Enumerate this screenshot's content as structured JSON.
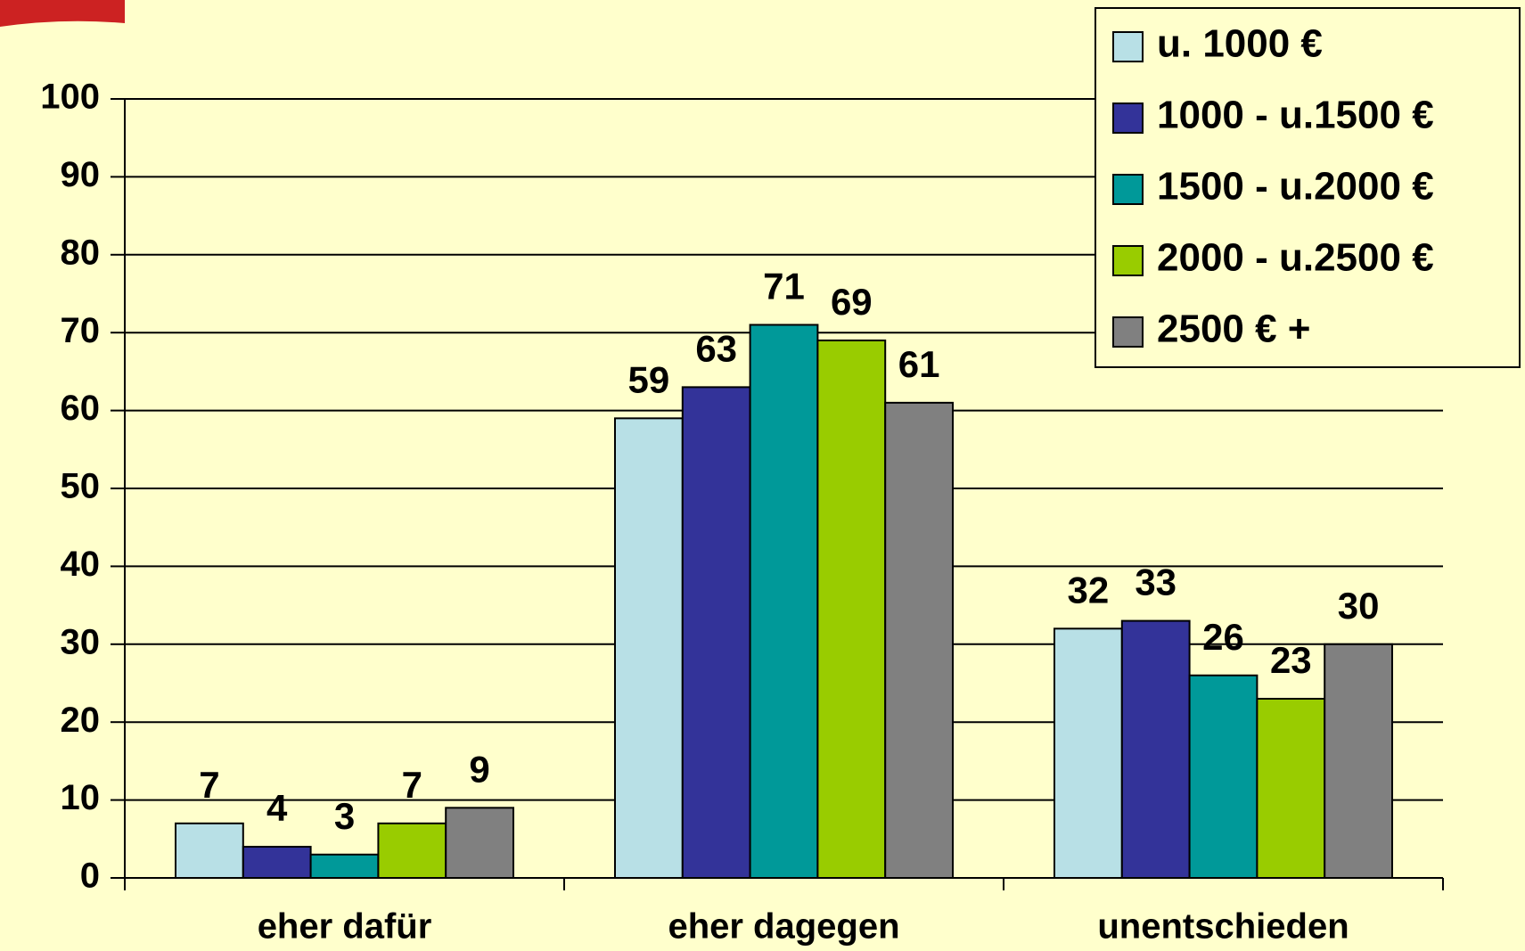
{
  "chart_data": {
    "type": "bar",
    "categories": [
      "eher dafür",
      "eher dagegen",
      "unentschieden"
    ],
    "series": [
      {
        "name": "u. 1000 €",
        "color": "#b8e0e6",
        "values": [
          7,
          59,
          32
        ]
      },
      {
        "name": "1000 - u.1500 €",
        "color": "#333399",
        "values": [
          4,
          63,
          33
        ]
      },
      {
        "name": "1500 - u.2000 €",
        "color": "#009999",
        "values": [
          3,
          71,
          26
        ]
      },
      {
        "name": "2000 - u.2500 €",
        "color": "#99cc00",
        "values": [
          7,
          69,
          23
        ]
      },
      {
        "name": "2500 € +",
        "color": "#808080",
        "values": [
          9,
          61,
          30
        ]
      }
    ],
    "ylim": [
      0,
      100
    ],
    "yticks": [
      0,
      10,
      20,
      30,
      40,
      50,
      60,
      70,
      80,
      90,
      100
    ],
    "grid": true,
    "legend": "top-right"
  }
}
